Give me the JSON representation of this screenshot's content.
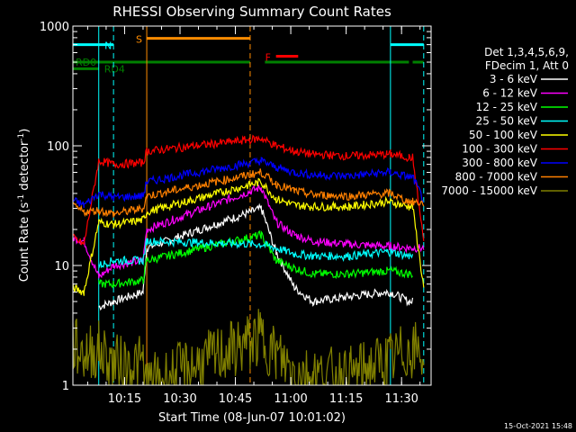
{
  "chart_data": {
    "type": "line",
    "title": "RHESSI Observing Summary Count Rates",
    "xlabel": "Start Time (08-Jun-07 10:01:02)",
    "ylabel_main": "Count Rate (s",
    "ylabel_sup1": "-1",
    "ylabel_mid": " detector",
    "ylabel_sup2": "-1",
    "ylabel_end": ")",
    "yscale": "log",
    "ylim": [
      1,
      1000
    ],
    "xlim_minutes": [
      0,
      97
    ],
    "x_ticks": [
      {
        "m": 14,
        "label": "10:15"
      },
      {
        "m": 29,
        "label": "10:30"
      },
      {
        "m": 44,
        "label": "10:45"
      },
      {
        "m": 59,
        "label": "11:00"
      },
      {
        "m": 74,
        "label": "11:15"
      },
      {
        "m": 89,
        "label": "11:30"
      }
    ],
    "y_ticks": [
      {
        "v": 1,
        "label": "1"
      },
      {
        "v": 10,
        "label": "10"
      },
      {
        "v": 100,
        "label": "100"
      },
      {
        "v": 1000,
        "label": "1000"
      }
    ],
    "legend_header": [
      "Det 1,3,4,5,6,9,",
      "FDecim 1, Att 0"
    ],
    "timestamp": "15-Oct-2021 15:48",
    "flags": [
      {
        "label": "N",
        "color": "#00ffff",
        "segments": [
          [
            0,
            11
          ],
          [
            86,
            95
          ]
        ],
        "level": 700
      },
      {
        "label": "S",
        "color": "#ff8c00",
        "segments": [
          [
            20,
            48
          ]
        ],
        "level": 790
      },
      {
        "label": "F",
        "color": "#ff0000",
        "segments": [
          [
            55,
            61
          ]
        ],
        "level": 560
      },
      {
        "label": "RD0",
        "color": "#008000",
        "segments": [
          [
            0,
            48
          ],
          [
            52,
            91
          ],
          [
            92,
            95
          ]
        ],
        "level": 500
      },
      {
        "label": "RD4",
        "color": "#008000",
        "segments": [
          [
            0,
            7
          ]
        ],
        "level": 440
      }
    ],
    "vlines": [
      {
        "m": 7,
        "color": "#00ffff",
        "dash": false
      },
      {
        "m": 11,
        "color": "#00ffff",
        "dash": true
      },
      {
        "m": 20,
        "color": "#ff8c00",
        "dash": false
      },
      {
        "m": 48,
        "color": "#ff8c00",
        "dash": true
      },
      {
        "m": 86,
        "color": "#00ffff",
        "dash": false
      },
      {
        "m": 95,
        "color": "#00ffff",
        "dash": true
      }
    ],
    "series": [
      {
        "name": "3 - 6 keV",
        "color": "#ffffff",
        "points": [
          [
            7,
            4.5
          ],
          [
            11,
            5
          ],
          [
            19,
            6
          ],
          [
            20,
            14
          ],
          [
            51,
            30
          ],
          [
            55,
            13
          ],
          [
            60,
            6.5
          ],
          [
            65,
            5
          ],
          [
            75,
            5.5
          ],
          [
            85,
            6
          ],
          [
            86,
            6
          ],
          [
            91,
            5
          ],
          [
            92,
            5
          ]
        ]
      },
      {
        "name": "6 - 12 keV",
        "color": "#ff00ff",
        "points": [
          [
            0,
            17
          ],
          [
            3,
            16
          ],
          [
            7,
            8
          ],
          [
            11,
            10
          ],
          [
            19,
            11
          ],
          [
            20,
            20
          ],
          [
            51,
            45
          ],
          [
            55,
            23
          ],
          [
            60,
            18
          ],
          [
            65,
            16
          ],
          [
            75,
            15
          ],
          [
            85,
            14.5
          ],
          [
            86,
            14.5
          ],
          [
            91,
            14
          ],
          [
            92,
            14
          ],
          [
            95,
            14
          ]
        ]
      },
      {
        "name": "12 - 25 keV",
        "color": "#00ff00",
        "points": [
          [
            7,
            7
          ],
          [
            11,
            7
          ],
          [
            19,
            7.5
          ],
          [
            20,
            11
          ],
          [
            51,
            18
          ],
          [
            55,
            11
          ],
          [
            60,
            9.5
          ],
          [
            65,
            8.5
          ],
          [
            75,
            8.5
          ],
          [
            85,
            9
          ],
          [
            86,
            9
          ],
          [
            91,
            8.5
          ],
          [
            92,
            8.5
          ]
        ]
      },
      {
        "name": "25 - 50 keV",
        "color": "#00ffff",
        "points": [
          [
            7,
            10
          ],
          [
            11,
            11
          ],
          [
            19,
            11
          ],
          [
            20,
            16
          ],
          [
            51,
            15
          ],
          [
            55,
            14
          ],
          [
            60,
            12.5
          ],
          [
            65,
            12
          ],
          [
            75,
            12
          ],
          [
            85,
            13
          ],
          [
            86,
            13
          ],
          [
            91,
            12
          ],
          [
            92,
            12
          ]
        ]
      },
      {
        "name": "50 - 100 keV",
        "color": "#ffff00",
        "points": [
          [
            0,
            6.5
          ],
          [
            3,
            6
          ],
          [
            7,
            23
          ],
          [
            11,
            22
          ],
          [
            19,
            24
          ],
          [
            20,
            28
          ],
          [
            51,
            50
          ],
          [
            55,
            36
          ],
          [
            60,
            32
          ],
          [
            65,
            31
          ],
          [
            75,
            31
          ],
          [
            85,
            34
          ],
          [
            86,
            34
          ],
          [
            91,
            31
          ],
          [
            92,
            31
          ],
          [
            95,
            6.5
          ]
        ]
      },
      {
        "name": "100 - 300 keV",
        "color": "#ff0000",
        "points": [
          [
            0,
            17
          ],
          [
            3,
            15
          ],
          [
            7,
            75
          ],
          [
            11,
            70
          ],
          [
            19,
            72
          ],
          [
            20,
            90
          ],
          [
            51,
            115
          ],
          [
            55,
            100
          ],
          [
            60,
            90
          ],
          [
            65,
            85
          ],
          [
            75,
            82
          ],
          [
            85,
            85
          ],
          [
            86,
            85
          ],
          [
            91,
            80
          ],
          [
            92,
            80
          ],
          [
            95,
            16
          ]
        ]
      },
      {
        "name": "300 - 800 keV",
        "color": "#0000ff",
        "points": [
          [
            0,
            35
          ],
          [
            3,
            32
          ],
          [
            7,
            40
          ],
          [
            11,
            37
          ],
          [
            19,
            38
          ],
          [
            20,
            50
          ],
          [
            51,
            75
          ],
          [
            55,
            66
          ],
          [
            60,
            60
          ],
          [
            65,
            57
          ],
          [
            75,
            56
          ],
          [
            85,
            60
          ],
          [
            86,
            60
          ],
          [
            91,
            55
          ],
          [
            92,
            55
          ],
          [
            95,
            35
          ]
        ]
      },
      {
        "name": "800 - 7000 keV",
        "color": "#ff8000",
        "points": [
          [
            0,
            31
          ],
          [
            3,
            28
          ],
          [
            7,
            29
          ],
          [
            11,
            27
          ],
          [
            19,
            30
          ],
          [
            20,
            38
          ],
          [
            51,
            60
          ],
          [
            55,
            48
          ],
          [
            60,
            42
          ],
          [
            65,
            39
          ],
          [
            75,
            38
          ],
          [
            85,
            40
          ],
          [
            86,
            40
          ],
          [
            91,
            34
          ],
          [
            92,
            34
          ],
          [
            95,
            33
          ]
        ]
      },
      {
        "name": "7000 - 15000 keV",
        "color": "#808000",
        "points": [
          [
            0,
            2.2
          ],
          [
            3,
            1.8
          ],
          [
            7,
            2
          ],
          [
            11,
            1.5
          ],
          [
            19,
            1.5
          ],
          [
            20,
            1
          ],
          [
            51,
            2.5
          ],
          [
            55,
            1.8
          ],
          [
            60,
            1.3
          ],
          [
            65,
            1.2
          ],
          [
            75,
            1.2
          ],
          [
            85,
            1.6
          ],
          [
            86,
            1.6
          ],
          [
            91,
            2
          ],
          [
            92,
            2
          ],
          [
            95,
            1.8
          ]
        ]
      }
    ]
  }
}
